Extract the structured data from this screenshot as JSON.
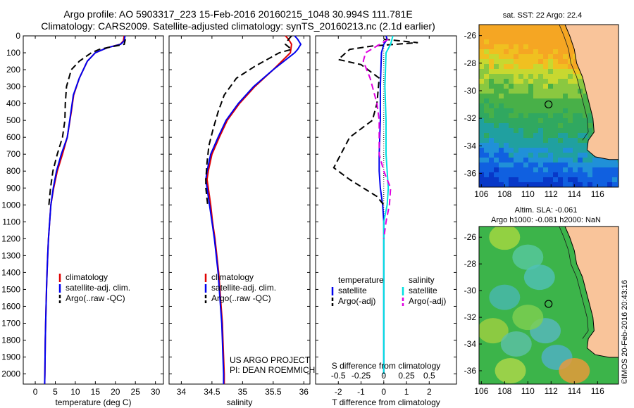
{
  "header": {
    "line1": "Argo profile: AO 5903317_223 15-Feb-2016 20160215_1048 30.994S 111.781E",
    "line2": "Climatology: CARS2009. Satellite-adjusted climatology: synTS_20160213.nc (2.1d earlier)"
  },
  "chart_data": [
    {
      "type": "line",
      "xlabel": "temperature (deg C)",
      "ylabel": "",
      "xlim": [
        -3,
        32
      ],
      "ylim": [
        2060,
        0
      ],
      "xticks": [
        0,
        5,
        10,
        15,
        20,
        25,
        30
      ],
      "yticks": [
        0,
        100,
        200,
        300,
        400,
        500,
        600,
        700,
        800,
        900,
        1000,
        1100,
        1200,
        1300,
        1400,
        1500,
        1600,
        1700,
        1800,
        1900,
        2000
      ],
      "legend": [
        "climatology",
        "satellite-adj. clim.",
        "Argo(..raw -QC)"
      ],
      "legend_position": "lower-center",
      "series": [
        {
          "name": "climatology",
          "color": "#e00000",
          "style": "solid",
          "points": [
            [
              22.2,
              0
            ],
            [
              22.0,
              30
            ],
            [
              21.2,
              50
            ],
            [
              18,
              70
            ],
            [
              15,
              100
            ],
            [
              13,
              150
            ],
            [
              11,
              250
            ],
            [
              9.6,
              350
            ],
            [
              9,
              450
            ],
            [
              8,
              600
            ],
            [
              6.8,
              700
            ],
            [
              5.5,
              800
            ],
            [
              4.6,
              900
            ],
            [
              3.9,
              1000
            ],
            [
              3.6,
              1100
            ],
            [
              3.3,
              1200
            ],
            [
              3.1,
              1300
            ],
            [
              2.95,
              1400
            ],
            [
              2.8,
              1500
            ],
            [
              2.7,
              1600
            ],
            [
              2.6,
              1700
            ],
            [
              2.5,
              1800
            ],
            [
              2.45,
              1900
            ],
            [
              2.4,
              2000
            ],
            [
              2.35,
              2060
            ]
          ]
        },
        {
          "name": "satellite-adj. clim.",
          "color": "#0000ee",
          "style": "solid",
          "points": [
            [
              22.4,
              0
            ],
            [
              22.2,
              30
            ],
            [
              21.3,
              50
            ],
            [
              18,
              70
            ],
            [
              15,
              100
            ],
            [
              13,
              150
            ],
            [
              11,
              250
            ],
            [
              9.5,
              350
            ],
            [
              8.9,
              450
            ],
            [
              8,
              600
            ],
            [
              6.5,
              700
            ],
            [
              5.3,
              800
            ],
            [
              4.5,
              900
            ],
            [
              3.9,
              1000
            ],
            [
              3.6,
              1100
            ],
            [
              3.3,
              1200
            ],
            [
              3.1,
              1300
            ],
            [
              2.95,
              1400
            ],
            [
              2.8,
              1500
            ],
            [
              2.7,
              1600
            ],
            [
              2.6,
              1700
            ],
            [
              2.5,
              1800
            ],
            [
              2.45,
              1900
            ],
            [
              2.4,
              2000
            ],
            [
              2.35,
              2060
            ]
          ]
        },
        {
          "name": "Argo(..raw -QC)",
          "color": "#000000",
          "style": "dashed",
          "points": [
            [
              22.5,
              20
            ],
            [
              22.2,
              50
            ],
            [
              19,
              65
            ],
            [
              16,
              80
            ],
            [
              14,
              100
            ],
            [
              11,
              150
            ],
            [
              9,
              200
            ],
            [
              7.8,
              300
            ],
            [
              7.5,
              400
            ],
            [
              7.4,
              500
            ],
            [
              6.8,
              600
            ],
            [
              5.5,
              700
            ],
            [
              4.4,
              800
            ],
            [
              3.8,
              900
            ],
            [
              3.4,
              1000
            ]
          ]
        }
      ]
    },
    {
      "type": "line",
      "xlabel": "salinity",
      "ylabel": "",
      "xlim": [
        33.8,
        36.1
      ],
      "ylim": [
        2060,
        0
      ],
      "xticks": [
        34,
        34.5,
        35,
        35.5,
        36
      ],
      "legend": [
        "climatology",
        "satellite-adj. clim.",
        "Argo(..raw -QC)"
      ],
      "legend_position": "lower-center",
      "annotation": [
        "US ARGO PROJECT",
        "PI: DEAN ROEMMICH"
      ],
      "series": [
        {
          "name": "climatology",
          "color": "#e00000",
          "style": "solid",
          "points": [
            [
              35.7,
              0
            ],
            [
              35.75,
              20
            ],
            [
              35.8,
              50
            ],
            [
              35.78,
              100
            ],
            [
              35.5,
              200
            ],
            [
              35.2,
              300
            ],
            [
              34.95,
              400
            ],
            [
              34.75,
              500
            ],
            [
              34.62,
              600
            ],
            [
              34.5,
              700
            ],
            [
              34.44,
              800
            ],
            [
              34.42,
              850
            ],
            [
              34.44,
              900
            ],
            [
              34.48,
              1000
            ],
            [
              34.51,
              1100
            ],
            [
              34.55,
              1200
            ],
            [
              34.58,
              1300
            ],
            [
              34.61,
              1400
            ],
            [
              34.63,
              1500
            ],
            [
              34.65,
              1600
            ],
            [
              34.67,
              1700
            ],
            [
              34.68,
              1800
            ],
            [
              34.69,
              1900
            ],
            [
              34.7,
              2000
            ],
            [
              34.7,
              2060
            ]
          ]
        },
        {
          "name": "satellite-adj. clim.",
          "color": "#0000ee",
          "style": "solid",
          "points": [
            [
              35.85,
              0
            ],
            [
              35.9,
              20
            ],
            [
              35.95,
              50
            ],
            [
              35.9,
              80
            ],
            [
              35.85,
              100
            ],
            [
              35.5,
              200
            ],
            [
              35.18,
              300
            ],
            [
              34.93,
              400
            ],
            [
              34.73,
              500
            ],
            [
              34.6,
              600
            ],
            [
              34.48,
              700
            ],
            [
              34.42,
              800
            ],
            [
              34.4,
              850
            ],
            [
              34.42,
              900
            ],
            [
              34.46,
              1000
            ],
            [
              34.5,
              1100
            ],
            [
              34.54,
              1200
            ],
            [
              34.57,
              1300
            ],
            [
              34.6,
              1400
            ],
            [
              34.62,
              1500
            ],
            [
              34.64,
              1600
            ],
            [
              34.66,
              1700
            ],
            [
              34.67,
              1800
            ],
            [
              34.68,
              1900
            ],
            [
              34.69,
              2000
            ],
            [
              34.69,
              2060
            ]
          ]
        },
        {
          "name": "Argo(..raw -QC)",
          "color": "#000000",
          "style": "dashed",
          "points": [
            [
              35.8,
              0
            ],
            [
              35.75,
              20
            ],
            [
              35.7,
              50
            ],
            [
              35.8,
              80
            ],
            [
              35.6,
              100
            ],
            [
              35.2,
              180
            ],
            [
              34.9,
              250
            ],
            [
              34.7,
              350
            ],
            [
              34.6,
              450
            ],
            [
              34.52,
              550
            ],
            [
              34.45,
              650
            ],
            [
              34.42,
              750
            ],
            [
              34.4,
              850
            ],
            [
              34.4,
              900
            ],
            [
              34.43,
              1000
            ]
          ]
        }
      ]
    },
    {
      "type": "line",
      "xlabel": "T difference from climatology",
      "ylabel": "",
      "secondary_xlabel": "S difference from climatology",
      "xlim": [
        -3,
        3.2
      ],
      "ylim": [
        2060,
        0
      ],
      "xticks": [
        -2,
        -1,
        0,
        1,
        2
      ],
      "xticks_labels": [
        "-2",
        "-1",
        "0",
        "1",
        "2"
      ],
      "secondary_xticks": [
        "-0.5",
        "-0.25",
        "0",
        "0.25",
        "0.5"
      ],
      "legend": [
        "temperature",
        "satellite",
        "Argo(-adj)",
        "salinity",
        "satellite",
        "Argo(-adj)"
      ],
      "legend_position": "lower-center",
      "series": [
        {
          "name": "temperature satellite",
          "color": "#0000ee",
          "style": "solid",
          "points": [
            [
              0.1,
              0
            ],
            [
              0.15,
              20
            ],
            [
              0,
              50
            ],
            [
              -0.1,
              100
            ],
            [
              -0.15,
              300
            ],
            [
              -0.15,
              500
            ],
            [
              -0.2,
              700
            ],
            [
              -0.2,
              800
            ],
            [
              -0.15,
              900
            ],
            [
              -0.05,
              1000
            ],
            [
              0,
              1100
            ],
            [
              0,
              1300
            ],
            [
              0,
              1500
            ],
            [
              0,
              1700
            ],
            [
              0,
              1900
            ],
            [
              0,
              2000
            ]
          ]
        },
        {
          "name": "temperature Argo(-adj)",
          "color": "#000000",
          "style": "dashed",
          "points": [
            [
              0,
              20
            ],
            [
              1.5,
              40
            ],
            [
              -0.5,
              60
            ],
            [
              -1.5,
              80
            ],
            [
              -2,
              140
            ],
            [
              -1,
              170
            ],
            [
              -0.2,
              250
            ],
            [
              -0.3,
              400
            ],
            [
              -0.5,
              500
            ],
            [
              -1.5,
              600
            ],
            [
              -2.2,
              780
            ],
            [
              -1.5,
              850
            ],
            [
              -0.3,
              950
            ],
            [
              0,
              1000
            ]
          ]
        },
        {
          "name": "salinity satellite",
          "color": "#00e0e0",
          "style": "solid",
          "points": [
            [
              0.4,
              0
            ],
            [
              0.3,
              50
            ],
            [
              0.1,
              100
            ],
            [
              0.05,
              300
            ],
            [
              0.1,
              500
            ],
            [
              0.1,
              700
            ],
            [
              0.15,
              800
            ],
            [
              0.2,
              900
            ],
            [
              0.15,
              1000
            ],
            [
              0,
              1100
            ],
            [
              0,
              1300
            ],
            [
              0,
              1500
            ],
            [
              0,
              1700
            ],
            [
              0,
              2000
            ]
          ]
        },
        {
          "name": "salinity Argo(-adj)",
          "color": "#e000e0",
          "style": "dashed",
          "points": [
            [
              0.2,
              20
            ],
            [
              -0.3,
              60
            ],
            [
              -0.8,
              100
            ],
            [
              -0.9,
              150
            ],
            [
              -0.6,
              250
            ],
            [
              -0.3,
              400
            ],
            [
              -0.2,
              500
            ],
            [
              -0.2,
              700
            ],
            [
              0,
              800
            ],
            [
              0.3,
              900
            ],
            [
              0.25,
              1000
            ],
            [
              0.1,
              1100
            ],
            [
              0,
              1200
            ]
          ]
        }
      ]
    }
  ],
  "maps": {
    "sst": {
      "title": "sat. SST: 22 Argo: 22.4",
      "lat_ticks": [
        "-26",
        "-28",
        "-30",
        "-32",
        "-34",
        "-36"
      ],
      "lon_ticks": [
        "106",
        "108",
        "110",
        "112",
        "114",
        "116"
      ],
      "float_lat": -30.994,
      "float_lon": 111.781
    },
    "sla": {
      "title1": "Altim. SLA: -0.061",
      "title2": "Argo h1000: -0.081 h2000: NaN",
      "lat_ticks": [
        "-26",
        "-28",
        "-30",
        "-32",
        "-34",
        "-36"
      ],
      "lon_ticks": [
        "106",
        "108",
        "110",
        "112",
        "114",
        "116"
      ],
      "float_lat": -30.994,
      "float_lon": 111.781
    }
  },
  "footer": {
    "credit": "©IMOS 20-Feb-2016 20:43:16"
  },
  "colors": {
    "clim": "#e00000",
    "sat": "#0000ee",
    "argo": "#000000",
    "sat_s": "#00e0e0",
    "argo_s": "#e000e0",
    "land": "#f9c49a"
  }
}
